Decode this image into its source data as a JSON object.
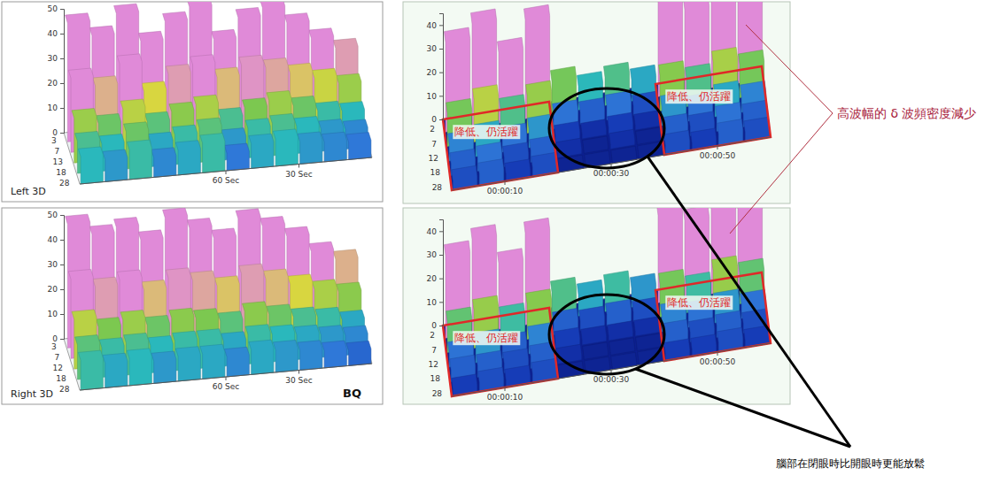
{
  "chart_data": [
    {
      "type": "surface",
      "title": "Left 3D",
      "x": [
        115,
        105,
        95,
        85,
        75,
        65,
        55,
        45,
        35,
        25,
        15,
        5
      ],
      "xlim": [
        120,
        0
      ],
      "xticks": [
        {
          "value": 60,
          "label": "60 Sec"
        },
        {
          "value": 30,
          "label": "30 Sec"
        }
      ],
      "categories": [
        3,
        7,
        13,
        18,
        28
      ],
      "ylim": [
        0,
        50
      ],
      "yticks": [
        0,
        10,
        20,
        30,
        40,
        50
      ],
      "cells": [
        [
          48,
          42,
          50,
          38,
          45,
          50,
          36,
          44,
          47,
          40,
          33,
          28
        ],
        [
          30,
          26,
          34,
          22,
          28,
          31,
          25,
          29,
          27,
          24,
          21,
          18
        ],
        [
          18,
          15,
          20,
          14,
          17,
          19,
          13,
          16,
          18,
          15,
          12,
          11
        ],
        [
          13,
          11,
          15,
          10,
          12,
          14,
          9,
          12,
          13,
          11,
          9,
          8
        ],
        [
          11,
          9,
          12,
          8,
          10,
          12,
          7,
          10,
          11,
          9,
          8,
          7
        ]
      ]
    },
    {
      "type": "surface",
      "title": "Right 3D",
      "annotations": [
        "BQ"
      ],
      "x": [
        115,
        105,
        95,
        85,
        75,
        65,
        55,
        45,
        35,
        25,
        15,
        5
      ],
      "xlim": [
        120,
        0
      ],
      "xticks": [
        {
          "value": 60,
          "label": "60 Sec"
        },
        {
          "value": 30,
          "label": "30 Sec"
        }
      ],
      "categories": [
        3,
        7,
        12,
        18,
        28
      ],
      "ylim": [
        0,
        50
      ],
      "yticks": [
        0,
        10,
        20,
        30,
        40,
        50
      ],
      "cells": [
        [
          50,
          45,
          47,
          41,
          49,
          44,
          39,
          46,
          42,
          37,
          30,
          26
        ],
        [
          32,
          28,
          30,
          25,
          29,
          27,
          24,
          28,
          25,
          22,
          19,
          17
        ],
        [
          20,
          16,
          18,
          15,
          17,
          16,
          14,
          17,
          15,
          13,
          12,
          10
        ],
        [
          14,
          12,
          13,
          11,
          12,
          12,
          10,
          12,
          11,
          10,
          9,
          8
        ],
        [
          12,
          10,
          11,
          9,
          10,
          10,
          8,
          10,
          9,
          8,
          7,
          6
        ]
      ]
    },
    {
      "type": "surface",
      "x": [
        2.5,
        7.5,
        12.5,
        17.5,
        22.5,
        27.5,
        32.5,
        37.5,
        42.5,
        47.5,
        52.5,
        57.5
      ],
      "xlim": [
        0,
        60
      ],
      "xticks": [
        {
          "value": 10,
          "label": "00:00:10"
        },
        {
          "value": 30,
          "label": "00:00:30"
        },
        {
          "value": 50,
          "label": "00:00:50"
        }
      ],
      "categories": [
        2,
        7,
        12,
        18,
        28
      ],
      "ylim": [
        0,
        45
      ],
      "yticks": [
        0,
        10,
        20,
        30,
        40
      ],
      "cells": [
        [
          38,
          44,
          30,
          42,
          14,
          10,
          12,
          9,
          40,
          35,
          43,
          37
        ],
        [
          14,
          18,
          12,
          16,
          6,
          5,
          6,
          4,
          15,
          12,
          17,
          14
        ],
        [
          7,
          9,
          6,
          8,
          3,
          2,
          3,
          2,
          8,
          6,
          9,
          7
        ],
        [
          5,
          6,
          4,
          5,
          2,
          1,
          2,
          1,
          5,
          4,
          6,
          5
        ],
        [
          4,
          5,
          3,
          4,
          1,
          1,
          1,
          1,
          4,
          3,
          5,
          4
        ]
      ],
      "regions": [
        {
          "label": "降低、仍活躍",
          "x": [
            0,
            20
          ]
        },
        {
          "label": "降低、仍活躍",
          "x": [
            40,
            60
          ]
        }
      ]
    },
    {
      "type": "surface",
      "x": [
        2.5,
        7.5,
        12.5,
        17.5,
        22.5,
        27.5,
        32.5,
        37.5,
        42.5,
        47.5,
        52.5,
        57.5
      ],
      "xlim": [
        0,
        60
      ],
      "xticks": [
        {
          "value": 10,
          "label": "00:00:10"
        },
        {
          "value": 30,
          "label": "00:00:30"
        },
        {
          "value": 50,
          "label": "00:00:50"
        }
      ],
      "categories": [
        2,
        7,
        12,
        18,
        28
      ],
      "ylim": [
        0,
        45
      ],
      "yticks": [
        0,
        10,
        20,
        30,
        40
      ],
      "cells": [
        [
          35,
          40,
          28,
          39,
          12,
          9,
          11,
          8,
          37,
          33,
          41,
          34
        ],
        [
          13,
          16,
          11,
          15,
          5,
          4,
          5,
          4,
          14,
          11,
          16,
          13
        ],
        [
          6,
          8,
          5,
          7,
          3,
          2,
          2,
          2,
          7,
          6,
          8,
          6
        ],
        [
          5,
          5,
          4,
          5,
          2,
          1,
          1,
          1,
          5,
          4,
          5,
          4
        ],
        [
          3,
          4,
          3,
          4,
          1,
          1,
          1,
          1,
          3,
          3,
          4,
          3
        ]
      ],
      "regions": [
        {
          "label": "降低、仍活躍",
          "x": [
            0,
            20
          ]
        },
        {
          "label": "降低、仍活躍",
          "x": [
            40,
            60
          ]
        }
      ]
    }
  ],
  "annotations": {
    "delta_note": "高波幅的 δ 波頻密度減少",
    "relax_note": "腦部在閉眼時比開眼時更能放鬆"
  }
}
